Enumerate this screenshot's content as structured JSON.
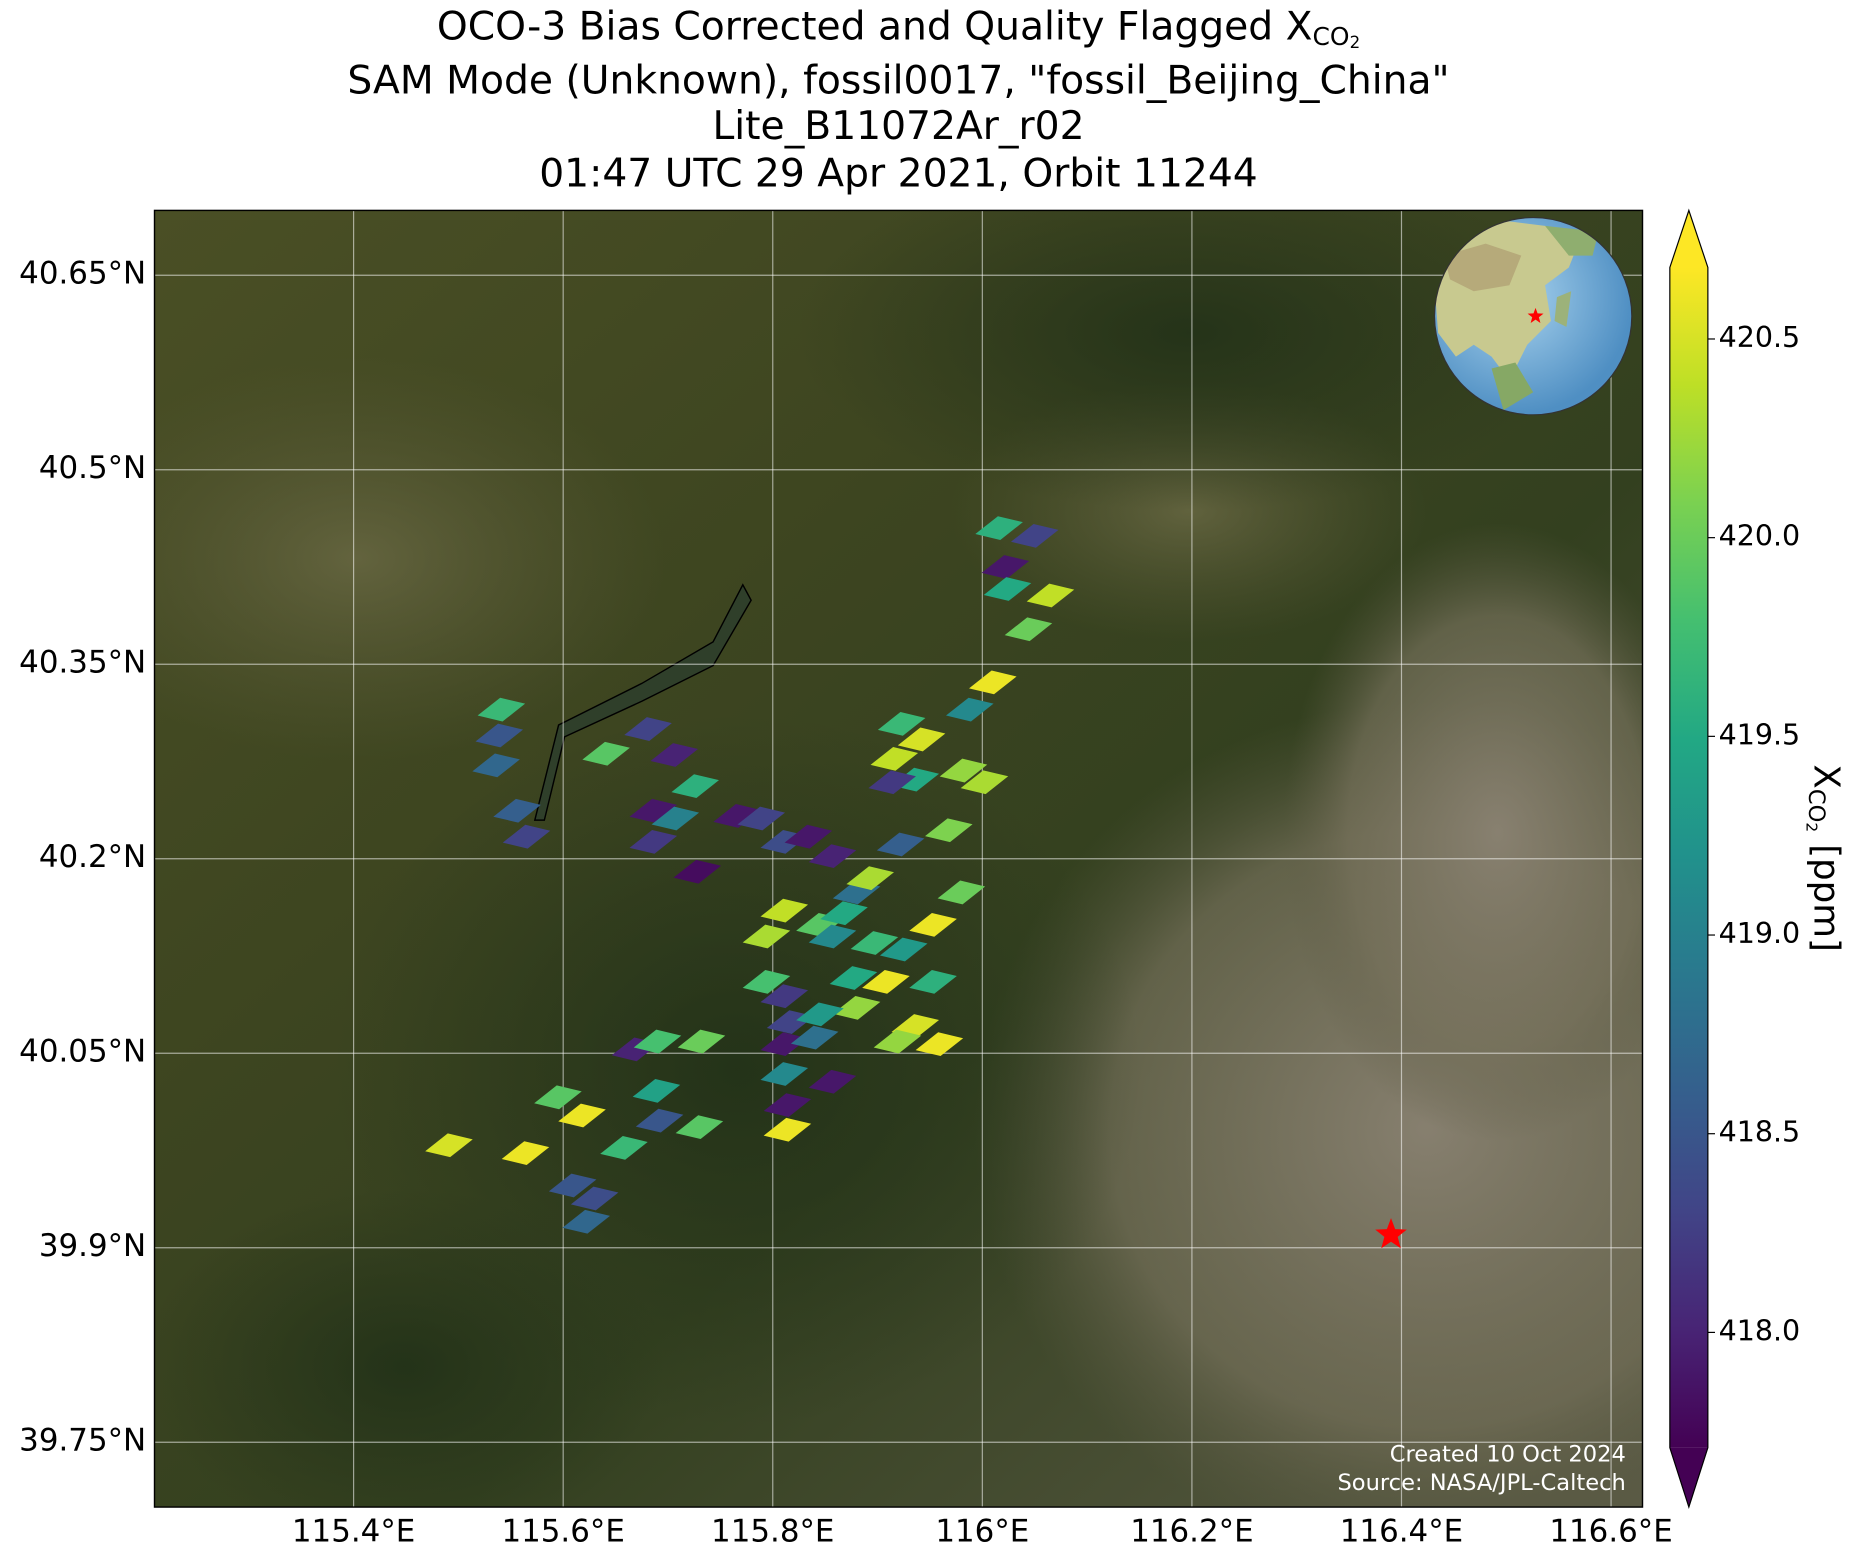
{
  "chart_data": {
    "type": "map",
    "title_lines": [
      {
        "text": "OCO-3 Bias Corrected and Quality Flagged X",
        "sub": "CO",
        "sub2": "2"
      },
      "SAM Mode (Unknown), fossil0017, \"fossil_Beijing_China\"",
      "Lite_B11072Ar_r02",
      "01:47 UTC 29 Apr 2021, Orbit 11244"
    ],
    "xlim": [
      115.21,
      116.63
    ],
    "ylim": [
      39.7,
      40.7
    ],
    "xticks": [
      {
        "value": 115.4,
        "label": "115.4°E"
      },
      {
        "value": 115.6,
        "label": "115.6°E"
      },
      {
        "value": 115.8,
        "label": "115.8°E"
      },
      {
        "value": 116.0,
        "label": "116°E"
      },
      {
        "value": 116.2,
        "label": "116.2°E"
      },
      {
        "value": 116.4,
        "label": "116.4°E"
      },
      {
        "value": 116.6,
        "label": "116.6°E"
      }
    ],
    "yticks": [
      {
        "value": 39.75,
        "label": "39.75°N"
      },
      {
        "value": 39.9,
        "label": "39.9°N"
      },
      {
        "value": 40.05,
        "label": "40.05°N"
      },
      {
        "value": 40.2,
        "label": "40.2°N"
      },
      {
        "value": 40.35,
        "label": "40.35°N"
      },
      {
        "value": 40.5,
        "label": "40.5°N"
      },
      {
        "value": 40.65,
        "label": "40.65°N"
      }
    ],
    "grid": true,
    "colormap": "viridis",
    "clim": [
      417.71,
      420.68
    ],
    "colorbar_ticks": [
      {
        "value": 418.0,
        "label": "418.0"
      },
      {
        "value": 418.5,
        "label": "418.5"
      },
      {
        "value": 419.0,
        "label": "419.0"
      },
      {
        "value": 419.5,
        "label": "419.5"
      },
      {
        "value": 420.0,
        "label": "420.0"
      },
      {
        "value": 420.5,
        "label": "420.5"
      }
    ],
    "colorbar_label": {
      "text": "X",
      "sub": "CO",
      "sub2": "2",
      "unit": "[ppm]"
    },
    "soundings": {
      "lon": [
        116.016,
        116.05,
        116.022,
        116.024,
        116.065,
        116.044,
        116.01,
        115.988,
        115.923,
        115.942,
        115.916,
        115.982,
        115.936,
        116.002,
        115.914,
        115.968,
        115.922,
        115.98,
        115.541,
        115.539,
        115.536,
        115.556,
        115.565,
        115.641,
        115.681,
        115.706,
        115.726,
        115.686,
        115.707,
        115.766,
        115.686,
        115.728,
        115.811,
        115.834,
        115.88,
        115.893,
        115.811,
        115.845,
        115.953,
        115.794,
        115.897,
        115.794,
        115.811,
        115.88,
        115.908,
        115.953,
        115.817,
        115.845,
        115.936,
        115.959,
        115.811,
        115.84,
        115.811,
        115.857,
        115.814,
        115.814,
        115.669,
        115.69,
        115.732,
        115.689,
        115.595,
        115.618,
        115.692,
        115.73,
        115.658,
        115.491,
        115.564,
        115.609,
        115.63,
        115.622,
        115.857,
        115.925,
        115.919,
        115.877,
        115.868,
        115.789,
        115.857
      ],
      "lat": [
        40.455,
        40.449,
        40.425,
        40.408,
        40.403,
        40.377,
        40.336,
        40.315,
        40.304,
        40.292,
        40.277,
        40.268,
        40.261,
        40.259,
        40.259,
        40.222,
        40.211,
        40.174,
        40.315,
        40.295,
        40.272,
        40.237,
        40.217,
        40.281,
        40.3,
        40.28,
        40.256,
        40.237,
        40.231,
        40.233,
        40.213,
        40.19,
        40.213,
        40.217,
        40.174,
        40.185,
        40.16,
        40.149,
        40.149,
        40.14,
        40.135,
        40.105,
        40.094,
        40.085,
        40.105,
        40.105,
        40.074,
        40.08,
        40.071,
        40.057,
        40.057,
        40.062,
        40.034,
        40.028,
        40.01,
        39.991,
        40.053,
        40.059,
        40.059,
        40.021,
        40.016,
        40.002,
        39.998,
        39.993,
        39.977,
        39.979,
        39.973,
        39.948,
        39.938,
        39.92,
        40.14,
        40.13,
        40.059,
        40.108,
        40.158,
        40.231,
        40.202
      ],
      "xco2": [
        419.6,
        418.3,
        417.9,
        419.5,
        420.4,
        420.0,
        420.6,
        419.1,
        419.7,
        420.5,
        420.4,
        420.2,
        419.5,
        420.3,
        418.2,
        420.1,
        418.6,
        420.0,
        419.7,
        418.5,
        418.7,
        418.6,
        418.3,
        419.9,
        418.3,
        418.0,
        419.6,
        417.9,
        419.0,
        417.9,
        418.2,
        417.8,
        418.4,
        417.9,
        418.8,
        420.3,
        420.4,
        419.9,
        420.6,
        420.3,
        419.7,
        419.8,
        418.2,
        420.2,
        420.6,
        419.6,
        418.3,
        419.3,
        420.5,
        420.6,
        417.9,
        418.8,
        419.1,
        417.9,
        417.9,
        420.6,
        418.0,
        419.8,
        420.0,
        419.4,
        419.9,
        420.6,
        418.5,
        419.9,
        419.7,
        420.5,
        420.6,
        418.5,
        418.4,
        418.7,
        419.1,
        419.3,
        420.2,
        419.5,
        419.5,
        418.3,
        418.0
      ]
    },
    "target": {
      "lon": 116.39,
      "lat": 39.91,
      "color": "#ff0000"
    },
    "credits": [
      "Created 10 Oct 2024",
      "Source: NASA/JPL-Caltech"
    ]
  }
}
